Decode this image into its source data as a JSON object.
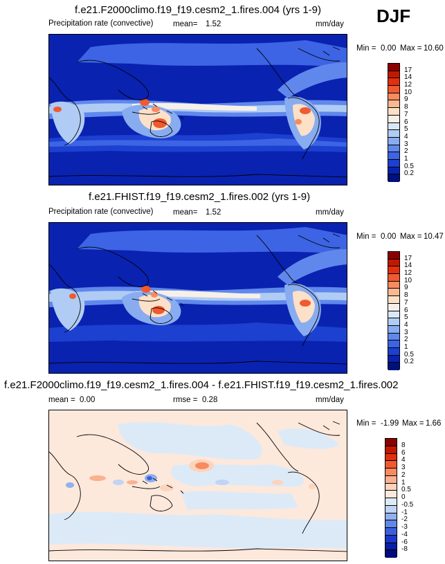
{
  "season": "DJF",
  "panels": [
    {
      "title": "f.e21.F2000climo.f19_f19.cesm2_1.fires.004 (yrs 1-9)",
      "variable": "Precipitation rate (convective)",
      "stat1_label": "mean=",
      "stat1_value": "1.52",
      "units": "mm/day",
      "min_label": "Min =",
      "min_value": "0.00",
      "max_label": "Max =",
      "max_value": "10.60",
      "colorbar": {
        "labels": [
          "17",
          "14",
          "12",
          "10",
          "9",
          "8",
          "7",
          "6",
          "5",
          "4",
          "3",
          "2",
          "1",
          "0.5",
          "0.2"
        ],
        "colors": [
          "#8b0000",
          "#c21800",
          "#e03010",
          "#f05a30",
          "#f88a60",
          "#fbb890",
          "#fde0c8",
          "#f8f0e8",
          "#d8e8f8",
          "#b0ccf4",
          "#88acf0",
          "#6088ec",
          "#3c64e4",
          "#1c40d0",
          "#0a22b0",
          "#00107c"
        ]
      }
    },
    {
      "title": "f.e21.FHIST.f19_f19.cesm2_1.fires.002 (yrs 1-9)",
      "variable": "Precipitation rate (convective)",
      "stat1_label": "mean=",
      "stat1_value": "1.52",
      "units": "mm/day",
      "min_label": "Min =",
      "min_value": "0.00",
      "max_label": "Max =",
      "max_value": "10.47",
      "colorbar": {
        "labels": [
          "17",
          "14",
          "12",
          "10",
          "9",
          "8",
          "7",
          "6",
          "5",
          "4",
          "3",
          "2",
          "1",
          "0.5",
          "0.2"
        ],
        "colors": [
          "#8b0000",
          "#c21800",
          "#e03010",
          "#f05a30",
          "#f88a60",
          "#fbb890",
          "#fde0c8",
          "#f8f0e8",
          "#d8e8f8",
          "#b0ccf4",
          "#88acf0",
          "#6088ec",
          "#3c64e4",
          "#1c40d0",
          "#0a22b0",
          "#00107c"
        ]
      }
    },
    {
      "title": "f.e21.F2000climo.f19_f19.cesm2_1.fires.004 - f.e21.FHIST.f19_f19.cesm2_1.fires.002",
      "stat1_label": "mean =",
      "stat1_value": "0.00",
      "stat2_label": "rmse =",
      "stat2_value": "0.28",
      "units": "mm/day",
      "min_label": "Min =",
      "min_value": "-1.99",
      "max_label": "Max =",
      "max_value": "1.66",
      "colorbar": {
        "labels": [
          "8",
          "6",
          "4",
          "3",
          "2",
          "1",
          "0.5",
          "0",
          "-0.5",
          "-1",
          "-2",
          "-3",
          "-4",
          "-6",
          "-8"
        ],
        "colors": [
          "#8b0000",
          "#c21800",
          "#e03010",
          "#f05a30",
          "#f88a60",
          "#fbb090",
          "#fcd4bc",
          "#fde8dc",
          "#dceaf8",
          "#c0d4f4",
          "#90b0ee",
          "#6088e8",
          "#3c60dc",
          "#1c38c8",
          "#0a1ea8",
          "#000c78"
        ]
      }
    }
  ]
}
